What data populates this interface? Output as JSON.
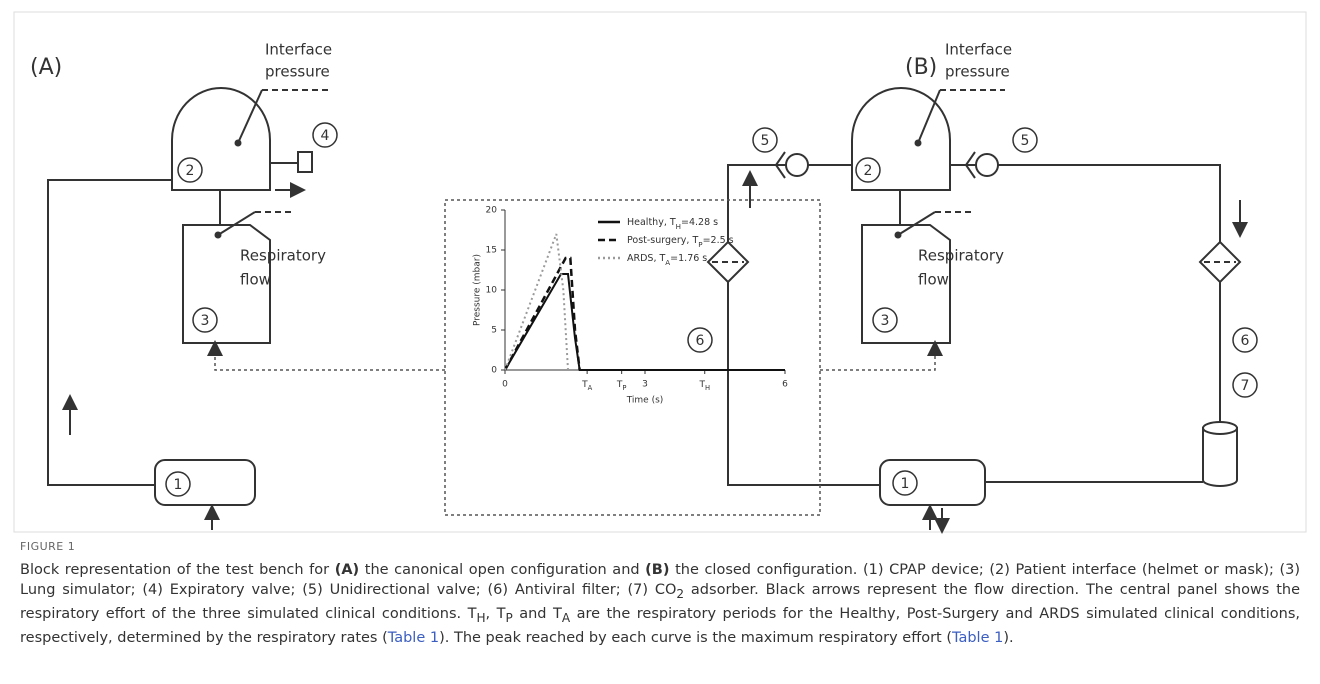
{
  "figure": {
    "panel_a": {
      "label": "(A)",
      "interface_label": [
        "Interface",
        "pressure"
      ],
      "flow_label": [
        "Respiratory",
        "flow"
      ],
      "components": [
        "1",
        "2",
        "3",
        "4"
      ]
    },
    "panel_b": {
      "label": "(B)",
      "interface_label": [
        "Interface",
        "pressure"
      ],
      "flow_label": [
        "Respiratory",
        "flow"
      ],
      "components": [
        "1",
        "2",
        "3",
        "5",
        "5",
        "6",
        "6",
        "7"
      ]
    },
    "chart_data": {
      "type": "line",
      "y_label": "Pressure (mbar)",
      "x_label": "Time (s)",
      "xlim": [
        0,
        6
      ],
      "ylim": [
        0,
        20
      ],
      "yticks": [
        0,
        5,
        10,
        15,
        20
      ],
      "xticks": [
        0,
        {
          "value": 1.76,
          "label": [
            {
              "text": "T"
            },
            {
              "text": "A",
              "style": "sub"
            }
          ]
        },
        {
          "value": 2.5,
          "label": [
            {
              "text": "T"
            },
            {
              "text": "P",
              "style": "sub"
            }
          ]
        },
        3,
        {
          "value": 4.28,
          "label": [
            {
              "text": "T"
            },
            {
              "text": "H",
              "style": "sub"
            }
          ]
        },
        6
      ],
      "series": [
        {
          "name": [
            {
              "text": "Healthy, T"
            },
            {
              "text": "H",
              "style": "sub"
            },
            {
              "text": "=4.28 s"
            }
          ],
          "color": "#111111",
          "dash": "solid",
          "x": [
            0,
            1.2,
            1.35,
            1.5,
            1.6,
            6
          ],
          "values": [
            0,
            12,
            12,
            4,
            0,
            0
          ]
        },
        {
          "name": [
            {
              "text": "Post-surgery, T"
            },
            {
              "text": "P",
              "style": "sub"
            },
            {
              "text": "=2.5 s"
            }
          ],
          "color": "#111111",
          "dash": "dashed",
          "x": [
            0,
            1.3,
            1.4,
            1.5,
            1.6
          ],
          "values": [
            0,
            14,
            14,
            5,
            0
          ]
        },
        {
          "name": [
            {
              "text": "ARDS, T"
            },
            {
              "text": "A",
              "style": "sub"
            },
            {
              "text": "=1.76 s"
            }
          ],
          "color": "#9a9a9a",
          "dash": "dotted",
          "x": [
            0,
            1.1,
            1.25,
            1.35
          ],
          "values": [
            0,
            17,
            10,
            0
          ]
        }
      ]
    },
    "caption_label": "FIGURE 1",
    "caption": [
      {
        "text": "Block representation of the test bench for "
      },
      {
        "text": "(A)",
        "style": "bold"
      },
      {
        "text": " the canonical open configuration and "
      },
      {
        "text": "(B)",
        "style": "bold"
      },
      {
        "text": " the closed configuration. (1) CPAP device; (2) Patient interface (helmet or mask); (3) Lung simulator; (4) Expiratory valve; (5) Unidirectional valve; (6) Antiviral filter; (7) CO"
      },
      {
        "text": "2",
        "style": "sub"
      },
      {
        "text": " adsorber. Black arrows represent the flow direction. The central panel shows the respiratory effort of the three simulated clinical conditions. T"
      },
      {
        "text": "H",
        "style": "sub"
      },
      {
        "text": ", T"
      },
      {
        "text": "P",
        "style": "sub"
      },
      {
        "text": " and T"
      },
      {
        "text": "A",
        "style": "sub"
      },
      {
        "text": " are the respiratory periods for the Healthy, Post-Surgery and ARDS simulated clinical conditions, respectively, determined by the respiratory rates ("
      },
      {
        "text": "Table 1",
        "style": "link"
      },
      {
        "text": "). The peak reached by each curve is the maximum respiratory effort ("
      },
      {
        "text": "Table 1",
        "style": "link"
      },
      {
        "text": ")."
      }
    ]
  }
}
